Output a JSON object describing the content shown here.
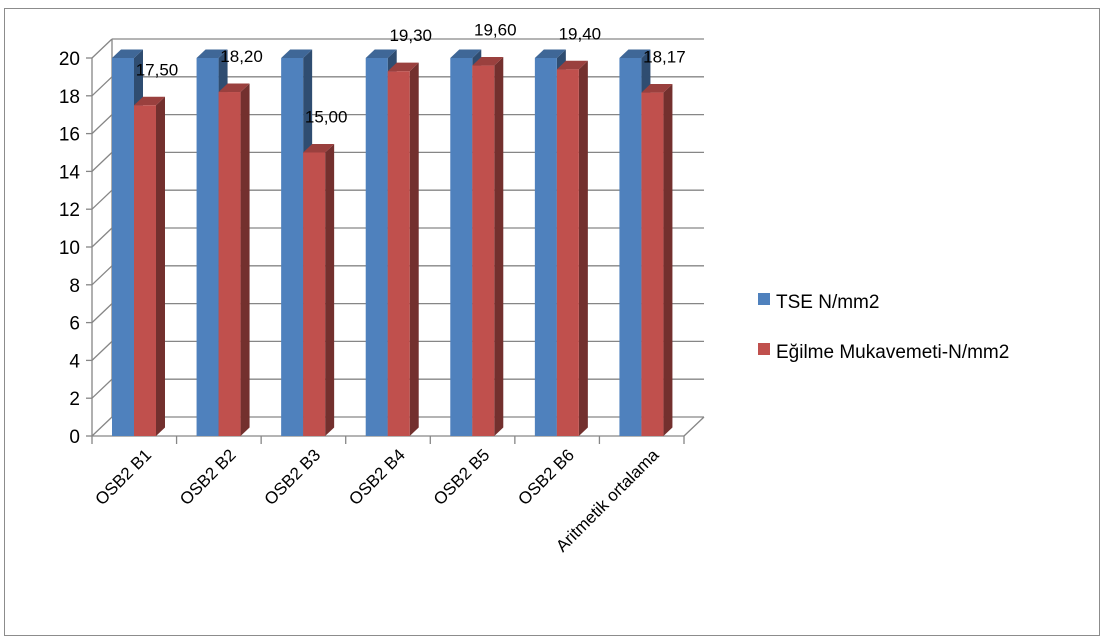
{
  "chart_data": {
    "type": "bar",
    "three_d": true,
    "categories": [
      "OSB2 B1",
      "OSB2 B2",
      "OSB2 B3",
      "OSB2 B4",
      "OSB2 B5",
      "OSB2 B6",
      "Aritmetik ortalama"
    ],
    "series": [
      {
        "name": "TSE N/mm2",
        "color": "#4f81bd",
        "values": [
          20,
          20,
          20,
          20,
          20,
          20,
          20
        ]
      },
      {
        "name": "Eğilme Mukavemeti-N/mm2",
        "color": "#c0504d",
        "values": [
          17.5,
          18.2,
          15.0,
          19.3,
          19.6,
          19.4,
          18.17
        ],
        "data_labels": [
          "17,50",
          "18,20",
          "15,00",
          "19,30",
          "19,60",
          "19,40",
          "18,17"
        ]
      }
    ],
    "y_ticks": [
      "0",
      "2",
      "4",
      "6",
      "8",
      "10",
      "12",
      "14",
      "16",
      "18",
      "20"
    ],
    "ylim": [
      0,
      20
    ],
    "grid": true,
    "legend_position": "right",
    "title": "",
    "xlabel": "",
    "ylabel": ""
  }
}
